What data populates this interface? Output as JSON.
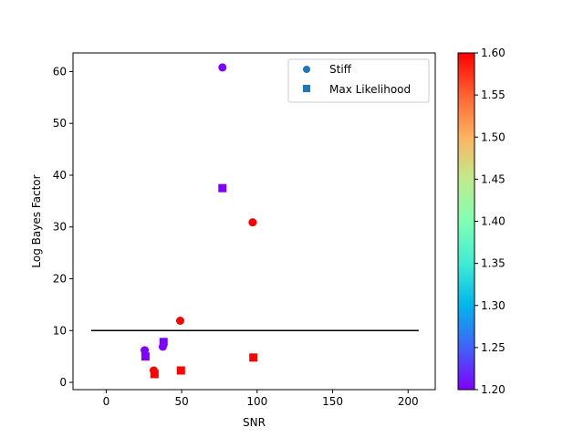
{
  "chart_data": {
    "type": "scatter",
    "xlabel": "SNR",
    "ylabel": "Log Bayes Factor",
    "xlim": [
      -22,
      218
    ],
    "ylim": [
      -1.4,
      63.6
    ],
    "x_ticks": [
      0,
      50,
      100,
      150,
      200
    ],
    "y_ticks": [
      0,
      10,
      20,
      30,
      40,
      50,
      60
    ],
    "grid": false,
    "legend_position": "top-right",
    "series": [
      {
        "name": "Stiff",
        "marker": "circle",
        "points": [
          {
            "x": 25.5,
            "y": 6.2,
            "c": 1.2
          },
          {
            "x": 31.5,
            "y": 2.3,
            "c": 1.6
          },
          {
            "x": 37.5,
            "y": 6.9,
            "c": 1.2
          },
          {
            "x": 49.0,
            "y": 11.9,
            "c": 1.6
          },
          {
            "x": 77.0,
            "y": 60.8,
            "c": 1.2
          },
          {
            "x": 97.0,
            "y": 30.9,
            "c": 1.6
          }
        ]
      },
      {
        "name": "Max Likelihood",
        "marker": "square",
        "points": [
          {
            "x": 26.0,
            "y": 5.0,
            "c": 1.2
          },
          {
            "x": 32.0,
            "y": 1.6,
            "c": 1.6
          },
          {
            "x": 38.0,
            "y": 7.8,
            "c": 1.2
          },
          {
            "x": 49.5,
            "y": 2.3,
            "c": 1.6
          },
          {
            "x": 77.0,
            "y": 37.5,
            "c": 1.2
          },
          {
            "x": 97.5,
            "y": 4.8,
            "c": 1.6
          }
        ]
      }
    ],
    "threshold_line": {
      "y": 10,
      "x_start": -10,
      "x_end": 207,
      "color": "#000000"
    },
    "colorbar": {
      "range": [
        1.2,
        1.6
      ],
      "ticks": [
        "1.20",
        "1.25",
        "1.30",
        "1.35",
        "1.40",
        "1.45",
        "1.50",
        "1.55",
        "1.60"
      ],
      "colormap": "rainbow"
    }
  }
}
